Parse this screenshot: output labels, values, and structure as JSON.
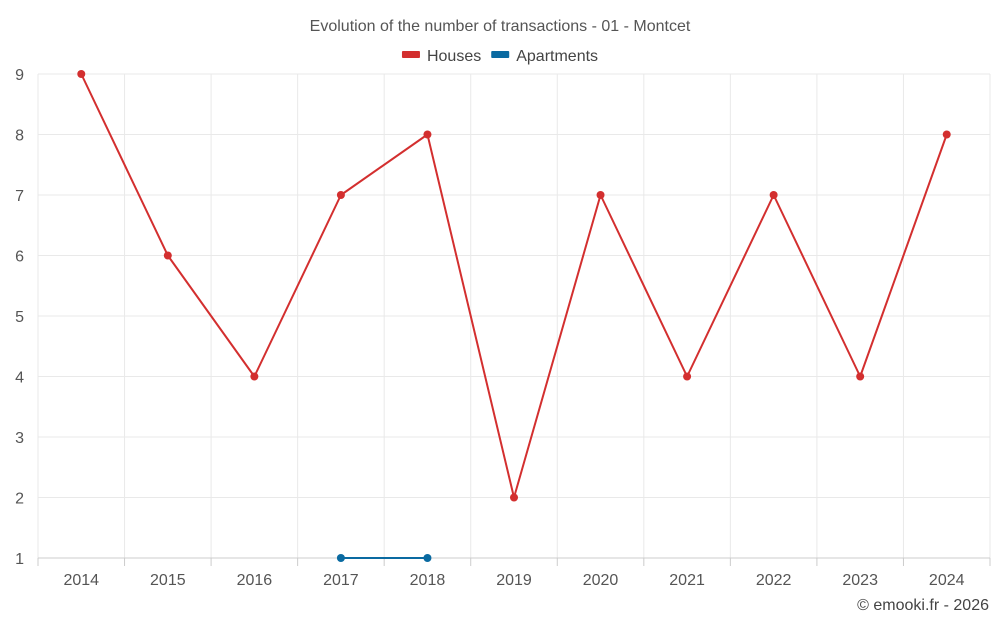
{
  "chart_data": {
    "type": "line",
    "title": "Evolution of the number of transactions - 01 - Montcet",
    "xlabel": "",
    "ylabel": "",
    "categories": [
      "2014",
      "2015",
      "2016",
      "2017",
      "2018",
      "2019",
      "2020",
      "2021",
      "2022",
      "2023",
      "2024"
    ],
    "ylim": [
      1,
      9
    ],
    "yticks": [
      1,
      2,
      3,
      4,
      5,
      6,
      7,
      8,
      9
    ],
    "grid": true,
    "legend": "top-center",
    "series": [
      {
        "name": "Houses",
        "color": "#d32f2f",
        "values": [
          9,
          6,
          4,
          7,
          8,
          2,
          7,
          4,
          7,
          4,
          8
        ]
      },
      {
        "name": "Apartments",
        "color": "#0a6aa1",
        "values": [
          null,
          null,
          null,
          1,
          1,
          null,
          null,
          null,
          null,
          null,
          null
        ]
      }
    ]
  },
  "credit": "© emooki.fr - 2026"
}
